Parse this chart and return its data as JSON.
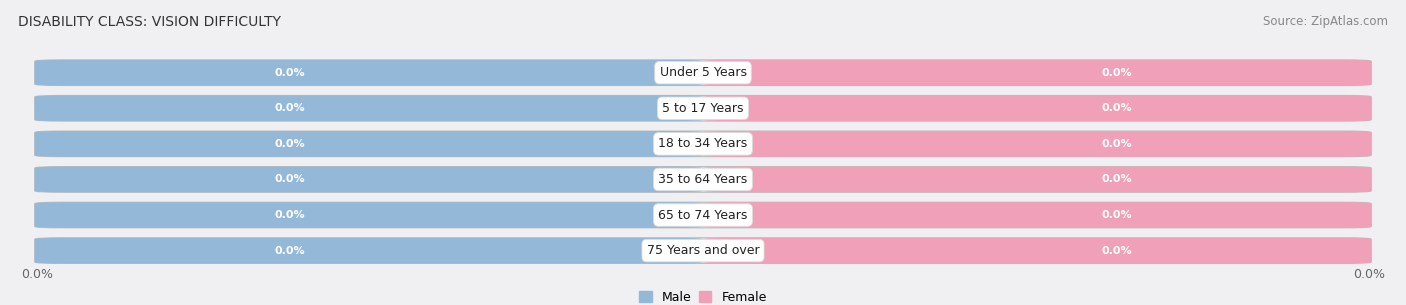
{
  "title": "DISABILITY CLASS: VISION DIFFICULTY",
  "source": "Source: ZipAtlas.com",
  "categories": [
    "Under 5 Years",
    "5 to 17 Years",
    "18 to 34 Years",
    "35 to 64 Years",
    "65 to 74 Years",
    "75 Years and over"
  ],
  "male_values": [
    0.0,
    0.0,
    0.0,
    0.0,
    0.0,
    0.0
  ],
  "female_values": [
    0.0,
    0.0,
    0.0,
    0.0,
    0.0,
    0.0
  ],
  "male_color": "#93b8d8",
  "female_color": "#f0a0b8",
  "male_label": "Male",
  "female_label": "Female",
  "row_bg_color": "#e8e8ec",
  "row_border_color": "#cccccc",
  "fig_bg_color": "#f0f0f2",
  "title_fontsize": 10,
  "source_fontsize": 8.5,
  "label_fontsize": 9,
  "value_fontsize": 8,
  "axis_label_left": "0.0%",
  "axis_label_right": "0.0%"
}
